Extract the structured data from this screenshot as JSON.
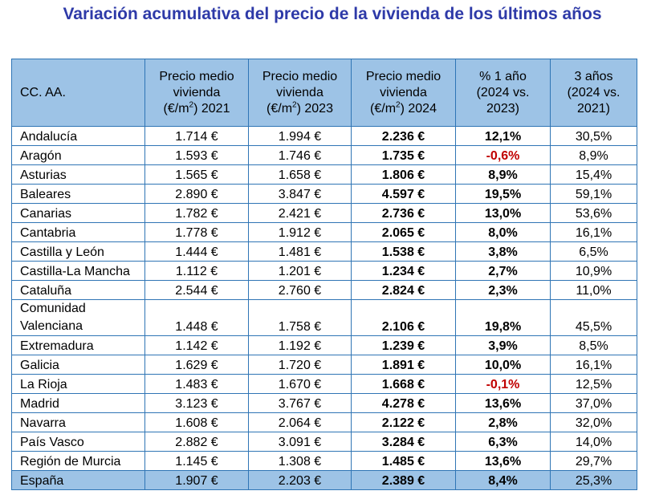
{
  "title": "Variación acumulativa del precio de la vivienda de los últimos años",
  "table": {
    "headers": {
      "region": "CC. AA.",
      "p2021": {
        "l1": "Precio medio",
        "l2": "vivienda",
        "pre": "(€/m",
        "sup": "2",
        "post": ") 2021"
      },
      "p2023": {
        "l1": "Precio medio",
        "l2": "vivienda",
        "pre": "(€/m",
        "sup": "2",
        "post": ") 2023"
      },
      "p2024": {
        "l1": "Precio medio",
        "l2": "vivienda",
        "pre": "(€/m",
        "sup": "2",
        "post": ") 2024"
      },
      "var1": {
        "l1": "% 1 año",
        "l2": "(2024 vs.",
        "l3": "2023)"
      },
      "var3": {
        "l1": "3 años",
        "l2": "(2024 vs.",
        "l3": "2021)"
      }
    },
    "rows": [
      {
        "region": "Andalucía",
        "p2021": "1.714 €",
        "p2023": "1.994 €",
        "p2024": "2.236 €",
        "var1": "12,1%",
        "var3": "30,5%"
      },
      {
        "region": "Aragón",
        "p2021": "1.593 €",
        "p2023": "1.746 €",
        "p2024": "1.735 €",
        "var1": "-0,6%",
        "var3": "8,9%"
      },
      {
        "region": "Asturias",
        "p2021": "1.565 €",
        "p2023": "1.658 €",
        "p2024": "1.806 €",
        "var1": "8,9%",
        "var3": "15,4%"
      },
      {
        "region": "Baleares",
        "p2021": "2.890 €",
        "p2023": "3.847 €",
        "p2024": "4.597 €",
        "var1": "19,5%",
        "var3": "59,1%"
      },
      {
        "region": "Canarias",
        "p2021": "1.782 €",
        "p2023": "2.421 €",
        "p2024": "2.736 €",
        "var1": "13,0%",
        "var3": "53,6%"
      },
      {
        "region": "Cantabria",
        "p2021": "1.778 €",
        "p2023": "1.912 €",
        "p2024": "2.065 €",
        "var1": "8,0%",
        "var3": "16,1%"
      },
      {
        "region": "Castilla y León",
        "p2021": "1.444 €",
        "p2023": "1.481 €",
        "p2024": "1.538 €",
        "var1": "3,8%",
        "var3": "6,5%"
      },
      {
        "region": "Castilla-La Mancha",
        "p2021": "1.112 €",
        "p2023": "1.201 €",
        "p2024": "1.234 €",
        "var1": "2,7%",
        "var3": "10,9%"
      },
      {
        "region": "Cataluña",
        "p2021": "2.544 €",
        "p2023": "2.760 €",
        "p2024": "2.824 €",
        "var1": "2,3%",
        "var3": "11,0%"
      },
      {
        "region_l1": "Comunidad",
        "region_l2": "Valenciana",
        "p2021": "1.448 €",
        "p2023": "1.758 €",
        "p2024": "2.106 €",
        "var1": "19,8%",
        "var3": "45,5%"
      },
      {
        "region": "Extremadura",
        "p2021": "1.142 €",
        "p2023": "1.192 €",
        "p2024": "1.239 €",
        "var1": "3,9%",
        "var3": "8,5%"
      },
      {
        "region": "Galicia",
        "p2021": "1.629 €",
        "p2023": "1.720 €",
        "p2024": "1.891 €",
        "var1": "10,0%",
        "var3": "16,1%"
      },
      {
        "region": "La Rioja",
        "p2021": "1.483 €",
        "p2023": "1.670 €",
        "p2024": "1.668 €",
        "var1": "-0,1%",
        "var3": "12,5%"
      },
      {
        "region": "Madrid",
        "p2021": "3.123 €",
        "p2023": "3.767 €",
        "p2024": "4.278 €",
        "var1": "13,6%",
        "var3": "37,0%"
      },
      {
        "region": "Navarra",
        "p2021": "1.608 €",
        "p2023": "2.064 €",
        "p2024": "2.122 €",
        "var1": "2,8%",
        "var3": "32,0%"
      },
      {
        "region": "País Vasco",
        "p2021": "2.882 €",
        "p2023": "3.091 €",
        "p2024": "3.284 €",
        "var1": "6,3%",
        "var3": "14,0%"
      },
      {
        "region": "Región de Murcia",
        "p2021": "1.145 €",
        "p2023": "1.308 €",
        "p2024": "1.485 €",
        "var1": "13,6%",
        "var3": "29,7%"
      }
    ],
    "total": {
      "region": "España",
      "p2021": "1.907 €",
      "p2023": "2.203 €",
      "p2024": "2.389 €",
      "var1": "8,4%",
      "var3": "25,3%"
    }
  },
  "colors": {
    "title": "#2e3aa8",
    "header_bg": "#9dc3e6",
    "border": "#2f75b5",
    "negative": "#c00000"
  }
}
